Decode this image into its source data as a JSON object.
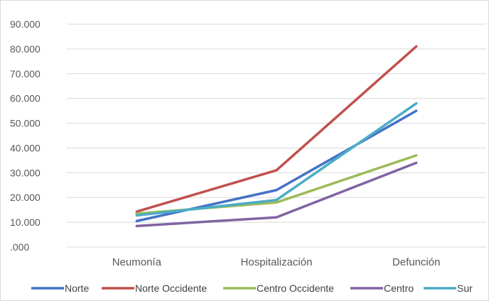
{
  "chart_data": {
    "type": "line",
    "title": "",
    "xlabel": "",
    "ylabel": "",
    "categories": [
      "Neumonía",
      "Hospitalización",
      "Defunción"
    ],
    "ylim": [
      0,
      90000
    ],
    "y_ticks": [
      0,
      10000,
      20000,
      30000,
      40000,
      50000,
      60000,
      70000,
      80000,
      90000
    ],
    "y_tick_labels": [
      ".000",
      "10.000",
      "20.000",
      "30.000",
      "40.000",
      "50.000",
      "60.000",
      "70.000",
      "80.000",
      "90.000"
    ],
    "grid": true,
    "legend_position": "bottom",
    "series": [
      {
        "name": "Norte",
        "color": "#4472c4",
        "values": [
          10500,
          23000,
          55000
        ]
      },
      {
        "name": "Norte Occidente",
        "color": "#c0504d",
        "values": [
          14300,
          31000,
          81000
        ]
      },
      {
        "name": "Centro Occidente",
        "color": "#9bbb59",
        "values": [
          13500,
          18000,
          37000
        ]
      },
      {
        "name": "Centro",
        "color": "#8064a2",
        "values": [
          8500,
          12000,
          34000
        ]
      },
      {
        "name": "Sur",
        "color": "#4bacc6",
        "values": [
          12800,
          19000,
          58000
        ]
      }
    ]
  }
}
